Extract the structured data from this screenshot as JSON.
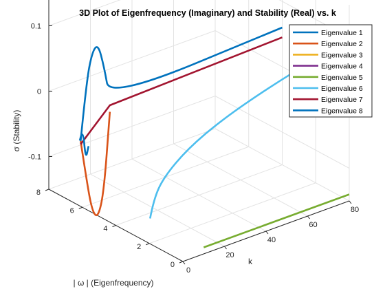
{
  "chart_data": {
    "type": "line3d",
    "title": "3D Plot of Eigenfrequency (Imaginary) and Stability (Real) vs. k",
    "xlabel": "k",
    "ylabel": "| ω | (Eigenfrequency)",
    "zlabel": "σ (Stability)",
    "xlim": [
      0,
      80
    ],
    "ylim": [
      0,
      8
    ],
    "zlim": [
      -0.15,
      0.15
    ],
    "xticks": [
      "0",
      "20",
      "40",
      "60",
      "80"
    ],
    "yticks": [
      "0",
      "2",
      "4",
      "6",
      "8"
    ],
    "zticks": [
      "-0.1",
      "0",
      "0.1"
    ],
    "grid": true,
    "legend_position": "top-right",
    "series": [
      {
        "name": "Eigenvalue 1",
        "color": "#0072BD",
        "points": [
          [
            0,
            6.1,
            -0.05
          ],
          [
            2,
            6.0,
            0.04
          ],
          [
            4,
            5.9,
            0.085
          ],
          [
            6,
            5.8,
            0.095
          ],
          [
            8,
            5.7,
            0.06
          ],
          [
            10,
            5.6,
            0.01
          ],
          [
            80,
            4.0,
            0.06
          ]
        ]
      },
      {
        "name": "Eigenvalue 2",
        "color": "#D95319",
        "points": [
          [
            0,
            6.1,
            -0.05
          ],
          [
            2,
            6.0,
            -0.11
          ],
          [
            4,
            5.9,
            -0.16
          ],
          [
            6,
            5.8,
            -0.17
          ],
          [
            8,
            5.7,
            -0.13
          ],
          [
            10,
            5.6,
            -0.01
          ]
        ]
      },
      {
        "name": "Eigenvalue 3",
        "color": "#EDB120",
        "points": []
      },
      {
        "name": "Eigenvalue 4",
        "color": "#7E2F8E",
        "points": []
      },
      {
        "name": "Eigenvalue 5",
        "color": "#77AC30",
        "points": [
          [
            10,
            0.0,
            -0.14
          ],
          [
            80,
            0.0,
            -0.14
          ]
        ]
      },
      {
        "name": "Eigenvalue 6",
        "color": "#4DBEEE",
        "points": [
          [
            10,
            3.2,
            -0.14
          ],
          [
            11,
            3.1,
            -0.11
          ],
          [
            15,
            3.0,
            -0.08
          ],
          [
            25,
            2.8,
            -0.045
          ],
          [
            40,
            2.6,
            -0.015
          ],
          [
            60,
            2.3,
            0.015
          ],
          [
            80,
            2.0,
            0.04
          ]
        ]
      },
      {
        "name": "Eigenvalue 7",
        "color": "#A2142F",
        "points": [
          [
            0,
            6.1,
            -0.055
          ],
          [
            10,
            5.6,
            0.0
          ],
          [
            80,
            4.0,
            0.045
          ]
        ]
      },
      {
        "name": "Eigenvalue 8",
        "color": "#0072BD",
        "points": [
          [
            0,
            6.15,
            -0.05
          ],
          [
            1,
            6.1,
            -0.03
          ],
          [
            2,
            6.05,
            -0.08
          ],
          [
            3,
            6.0,
            -0.06
          ]
        ]
      }
    ]
  }
}
